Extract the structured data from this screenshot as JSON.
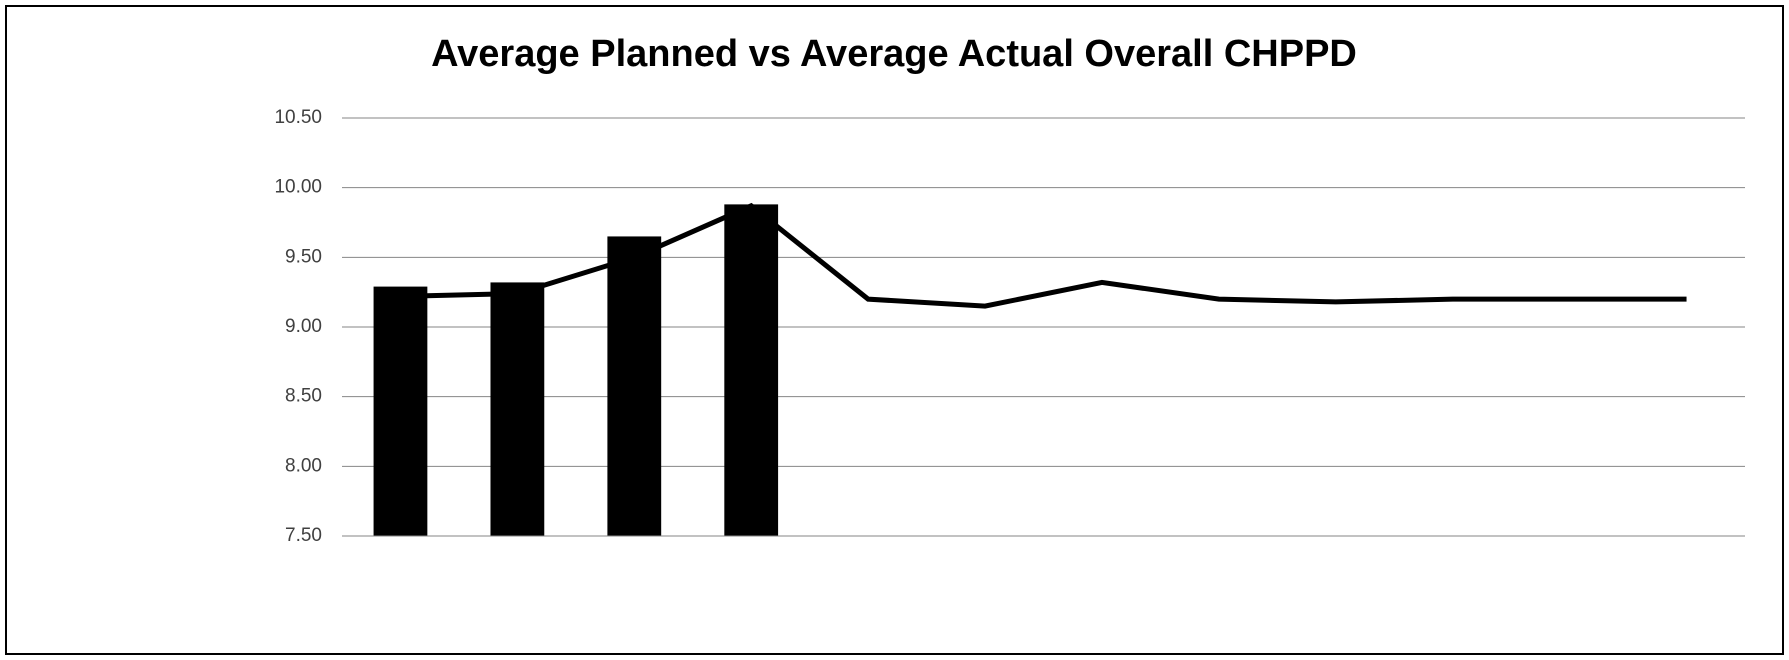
{
  "chart_data": {
    "type": "combo",
    "title": "Average Planned vs Average Actual Overall CHPPD",
    "categories": [
      null,
      null,
      null,
      null,
      null,
      null,
      null,
      null,
      null,
      null,
      null,
      null
    ],
    "series": [
      {
        "kind": "bar",
        "color": "#000000",
        "values": [
          9.29,
          9.32,
          9.65,
          9.88,
          null,
          null,
          null,
          null,
          null,
          null,
          null,
          null
        ]
      },
      {
        "kind": "line",
        "color": "#000000",
        "values": [
          9.22,
          9.24,
          9.5,
          9.87,
          9.2,
          9.15,
          9.32,
          9.2,
          9.18,
          9.2,
          9.2,
          9.2
        ]
      }
    ],
    "ylim": [
      7.5,
      10.5
    ],
    "yticks": [
      {
        "value": 7.5,
        "label": "7.50"
      },
      {
        "value": 8,
        "label": "8.00"
      },
      {
        "value": 8.5,
        "label": "8.50"
      },
      {
        "value": 9,
        "label": "9.00"
      },
      {
        "value": 9.5,
        "label": "9.50"
      },
      {
        "value": 10,
        "label": "10.00"
      },
      {
        "value": 10.5,
        "label": "10.50"
      }
    ],
    "grid": true
  }
}
